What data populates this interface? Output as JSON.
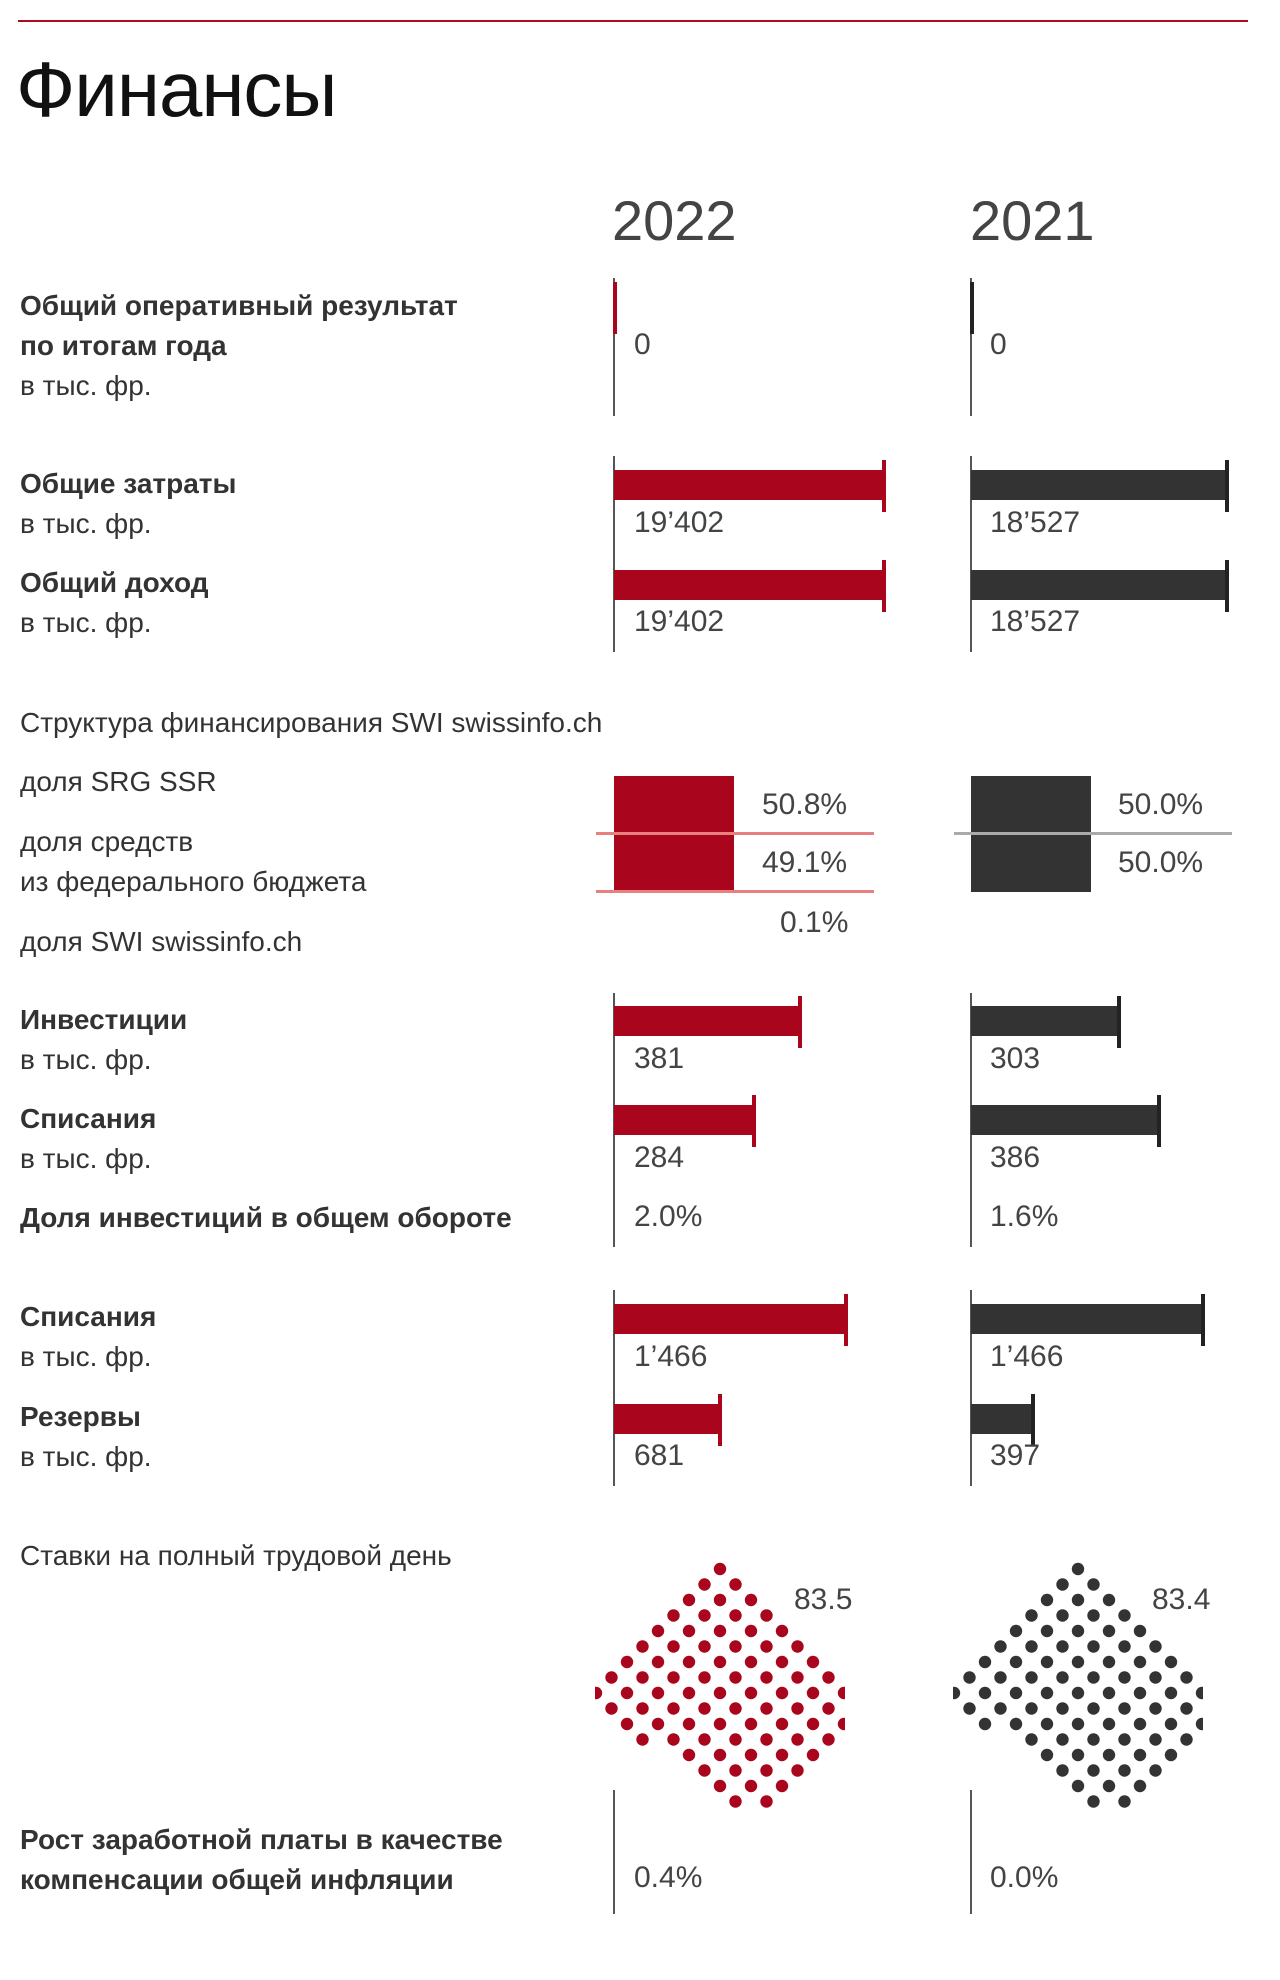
{
  "title": "Финансы",
  "years": [
    "2022",
    "2021"
  ],
  "colors": {
    "year_2022": "#a9061e",
    "year_2021": "#333333",
    "rule": "#b0081d"
  },
  "operating_result": {
    "label_1": "Общий оперативный результат",
    "label_2": "по итогам года",
    "unit": "в тыс. фр.",
    "v2022": "0",
    "v2021": "0"
  },
  "total_costs": {
    "label": "Общие затраты",
    "unit": "в тыс. фр.",
    "v2022": "19’402",
    "v2021": "18’527"
  },
  "total_income": {
    "label": "Общий доход",
    "unit": "в тыс. фр.",
    "v2022": "19’402",
    "v2021": "18’527"
  },
  "funding": {
    "title": "Структура финансирования SWI swissinfo.ch",
    "srg_label": "доля SRG SSR",
    "federal_label_1": "доля средств",
    "federal_label_2": "из федерального бюджета",
    "swi_label": "доля SWI swissinfo.ch",
    "srg_2022": "50.8%",
    "federal_2022": "49.1%",
    "swi_2022": "0.1%",
    "srg_2021": "50.0%",
    "federal_2021": "50.0%"
  },
  "investments": {
    "label": "Инвестиции",
    "unit": "в тыс. фр.",
    "v2022": "381",
    "v2021": "303"
  },
  "writeoffs_1": {
    "label": "Списания",
    "unit": "в тыс. фр.",
    "v2022": "284",
    "v2021": "386"
  },
  "invest_share": {
    "label": "Доля инвестиций в общем обороте",
    "v2022": "2.0%",
    "v2021": "1.6%"
  },
  "writeoffs_2": {
    "label": "Списания",
    "unit": "в тыс. фр.",
    "v2022": "1’466",
    "v2021": "1’466"
  },
  "reserves": {
    "label": "Резервы",
    "unit": "в тыс. фр.",
    "v2022": "681",
    "v2021": "397"
  },
  "fte": {
    "label": "Ставки на полный трудовой день",
    "v2022": "83.5",
    "v2021": "83.4"
  },
  "wage": {
    "label_1": "Рост заработной платы в качестве",
    "label_2": "компенсации общей инфляции",
    "v2022": "0.4%",
    "v2021": "0.0%"
  },
  "chart_data": [
    {
      "type": "bar",
      "title": "Общий оперативный результат по итогам года",
      "ylabel": "в тыс. фр.",
      "categories": [
        "2022",
        "2021"
      ],
      "values": [
        0,
        0
      ]
    },
    {
      "type": "bar",
      "title": "Общие затраты",
      "ylabel": "в тыс. фр.",
      "categories": [
        "2022",
        "2021"
      ],
      "values": [
        19402,
        18527
      ]
    },
    {
      "type": "bar",
      "title": "Общий доход",
      "ylabel": "в тыс. фр.",
      "categories": [
        "2022",
        "2021"
      ],
      "values": [
        19402,
        18527
      ]
    },
    {
      "type": "bar",
      "title": "Структура финансирования SWI swissinfo.ch",
      "categories": [
        "2022",
        "2021"
      ],
      "series": [
        {
          "name": "доля SRG SSR",
          "values": [
            50.8,
            50.0
          ]
        },
        {
          "name": "доля средств из федерального бюджета",
          "values": [
            49.1,
            50.0
          ]
        },
        {
          "name": "доля SWI swissinfo.ch",
          "values": [
            0.1,
            0
          ]
        }
      ]
    },
    {
      "type": "bar",
      "title": "Инвестиции",
      "ylabel": "в тыс. фр.",
      "categories": [
        "2022",
        "2021"
      ],
      "values": [
        381,
        303
      ]
    },
    {
      "type": "bar",
      "title": "Списания",
      "ylabel": "в тыс. фр.",
      "categories": [
        "2022",
        "2021"
      ],
      "values": [
        284,
        386
      ]
    },
    {
      "type": "table",
      "title": "Доля инвестиций в общем обороте",
      "categories": [
        "2022",
        "2021"
      ],
      "values": [
        2.0,
        1.6
      ]
    },
    {
      "type": "bar",
      "title": "Списания",
      "ylabel": "в тыс. фр.",
      "categories": [
        "2022",
        "2021"
      ],
      "values": [
        1466,
        1466
      ]
    },
    {
      "type": "bar",
      "title": "Резервы",
      "ylabel": "в тыс. фр.",
      "categories": [
        "2022",
        "2021"
      ],
      "values": [
        681,
        397
      ]
    },
    {
      "type": "scatter",
      "title": "Ставки на полный трудовой день",
      "categories": [
        "2022",
        "2021"
      ],
      "values": [
        83.5,
        83.4
      ]
    },
    {
      "type": "table",
      "title": "Рост заработной платы в качестве компенсации общей инфляции",
      "categories": [
        "2022",
        "2021"
      ],
      "values": [
        0.4,
        0.0
      ]
    }
  ]
}
